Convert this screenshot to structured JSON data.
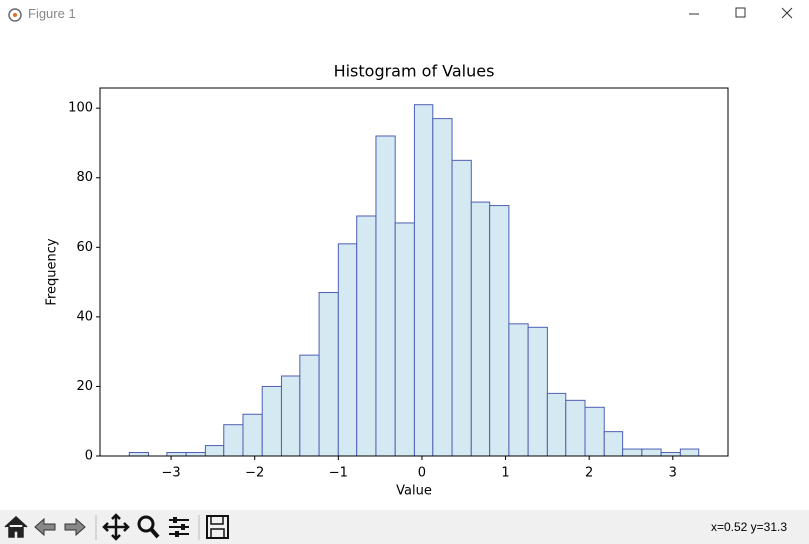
{
  "window": {
    "title": "Figure 1"
  },
  "chart_data": {
    "type": "histogram",
    "title": "Histogram of Values",
    "x_label": "Value",
    "y_label": "Frequency",
    "bins": [
      -3.5,
      -3.27,
      -3.05,
      -2.82,
      -2.59,
      -2.37,
      -2.14,
      -1.91,
      -1.68,
      -1.46,
      -1.23,
      -1.0,
      -0.78,
      -0.55,
      -0.32,
      -0.09,
      0.13,
      0.36,
      0.59,
      0.81,
      1.04,
      1.27,
      1.5,
      1.72,
      1.95,
      2.18,
      2.4,
      2.63,
      2.86,
      3.09,
      3.31
    ],
    "counts": [
      1,
      0,
      1,
      1,
      3,
      9,
      12,
      20,
      23,
      29,
      47,
      61,
      69,
      92,
      67,
      101,
      97,
      85,
      73,
      72,
      38,
      37,
      18,
      16,
      14,
      7,
      2,
      2,
      1,
      2
    ],
    "color": "#d4e9f1",
    "edge_color": "#4e5fb4",
    "xlim": [
      -3.85,
      3.66
    ],
    "xticks": [
      {
        "value": -3,
        "label": "−3"
      },
      {
        "value": -2,
        "label": "−2"
      },
      {
        "value": -1,
        "label": "−1"
      },
      0,
      1,
      2,
      3
    ],
    "ylim": [
      0,
      105.8
    ],
    "yticks": [
      0,
      20,
      40,
      60,
      80,
      100
    ],
    "grid": false
  },
  "status": "x=0.52 y=31.3"
}
